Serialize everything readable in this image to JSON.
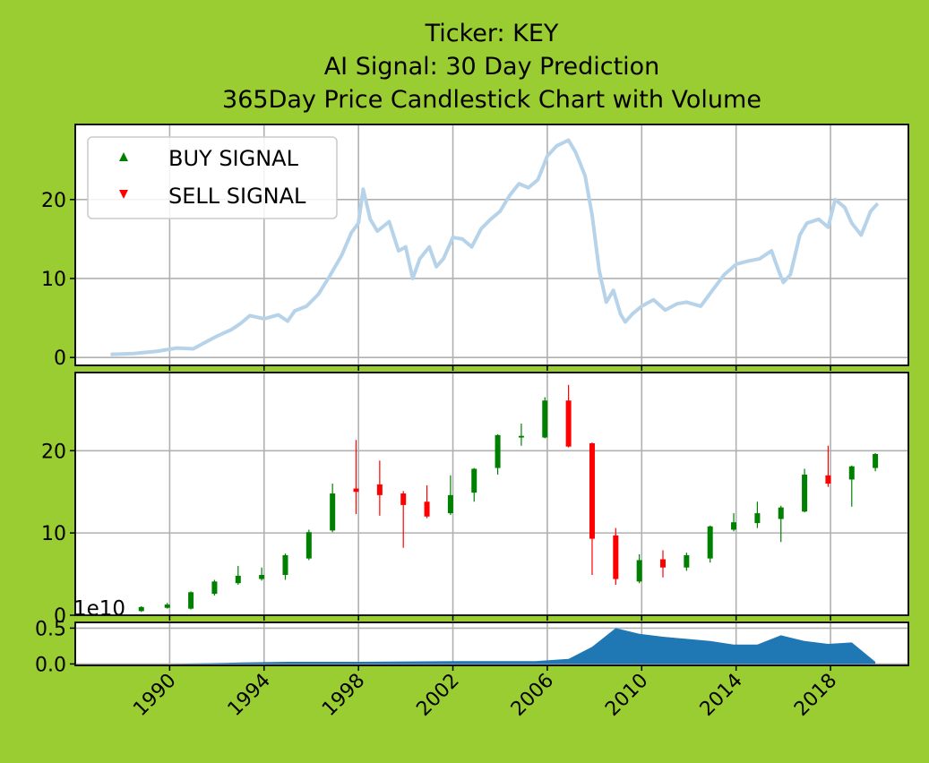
{
  "title": {
    "line1": "Ticker: KEY",
    "line2": "AI Signal: 30 Day Prediction",
    "line3": "365Day Price Candlestick Chart with Volume"
  },
  "legend": {
    "buy": "BUY SIGNAL",
    "sell": "SELL SIGNAL",
    "buy_color": "#008000",
    "sell_color": "#ff0000",
    "location": "upper-left"
  },
  "colors": {
    "background": "#9acd32",
    "price_line": "#b7d3e9",
    "up_candle": "#008000",
    "down_candle": "#ff0000",
    "volume_fill": "#1f77b4"
  },
  "volume_offset_label": "1e10",
  "chart_data": [
    {
      "type": "line",
      "name": "daily-close",
      "grid": true,
      "xlim": [
        1986.0,
        2021.3
      ],
      "ylim": [
        -1,
        29.5
      ],
      "yticks": [
        0,
        10,
        20
      ],
      "x": [
        1987.5,
        1988.5,
        1989.5,
        1990.3,
        1991.0,
        1991.5,
        1992.0,
        1992.6,
        1993.0,
        1993.4,
        1994.0,
        1994.6,
        1995.0,
        1995.3,
        1995.8,
        1996.3,
        1996.8,
        1997.3,
        1997.7,
        1998.0,
        1998.2,
        1998.5,
        1998.8,
        1999.3,
        1999.7,
        2000.0,
        2000.3,
        2000.6,
        2001.0,
        2001.3,
        2001.6,
        2002.0,
        2002.4,
        2002.8,
        2003.2,
        2003.6,
        2004.0,
        2004.4,
        2004.8,
        2005.2,
        2005.6,
        2006.0,
        2006.4,
        2006.9,
        2007.2,
        2007.6,
        2007.9,
        2008.2,
        2008.5,
        2008.8,
        2009.1,
        2009.3,
        2009.6,
        2010.0,
        2010.5,
        2011.0,
        2011.5,
        2011.9,
        2012.5,
        2013.0,
        2013.5,
        2014.0,
        2014.5,
        2015.0,
        2015.5,
        2015.8,
        2016.0,
        2016.3,
        2016.7,
        2017.0,
        2017.5,
        2017.9,
        2018.2,
        2018.6,
        2018.9,
        2019.3,
        2019.7,
        2020.0
      ],
      "y": [
        0.4,
        0.5,
        0.8,
        1.2,
        1.1,
        1.9,
        2.7,
        3.5,
        4.3,
        5.3,
        4.9,
        5.4,
        4.6,
        5.9,
        6.5,
        8.0,
        10.4,
        13.0,
        15.8,
        17.0,
        21.3,
        17.5,
        16.0,
        17.2,
        13.5,
        14.0,
        10.0,
        12.5,
        14.0,
        11.5,
        12.5,
        15.2,
        15.0,
        14.0,
        16.3,
        17.5,
        18.5,
        20.5,
        22.0,
        21.5,
        22.5,
        25.5,
        26.8,
        27.5,
        26.0,
        23.0,
        18.0,
        11.0,
        7.0,
        8.5,
        5.5,
        4.5,
        5.5,
        6.5,
        7.3,
        6.0,
        6.8,
        7.0,
        6.5,
        8.5,
        10.5,
        11.8,
        12.2,
        12.5,
        13.5,
        11.0,
        9.5,
        10.5,
        15.5,
        17.0,
        17.5,
        16.5,
        20.0,
        19.0,
        17.0,
        15.5,
        18.5,
        19.5
      ]
    },
    {
      "type": "candlestick",
      "name": "yearly",
      "grid": true,
      "xlim": [
        1986.0,
        2021.3
      ],
      "ylim": [
        0,
        29.5
      ],
      "yticks": [
        0,
        10,
        20
      ],
      "candles": [
        {
          "x": 1988.8,
          "open": 0.5,
          "close": 1.0,
          "high": 1.1,
          "low": 0.4
        },
        {
          "x": 1989.9,
          "open": 0.9,
          "close": 1.3,
          "high": 1.5,
          "low": 0.8
        },
        {
          "x": 1990.9,
          "open": 0.8,
          "close": 2.8,
          "high": 2.9,
          "low": 0.7
        },
        {
          "x": 1991.9,
          "open": 2.6,
          "close": 4.1,
          "high": 4.3,
          "low": 2.4
        },
        {
          "x": 1992.9,
          "open": 3.9,
          "close": 4.8,
          "high": 6.0,
          "low": 3.7
        },
        {
          "x": 1993.9,
          "open": 4.4,
          "close": 4.9,
          "high": 5.8,
          "low": 4.2
        },
        {
          "x": 1994.9,
          "open": 4.9,
          "close": 7.3,
          "high": 7.5,
          "low": 4.3
        },
        {
          "x": 1995.9,
          "open": 6.9,
          "close": 10.1,
          "high": 10.4,
          "low": 6.7
        },
        {
          "x": 1996.9,
          "open": 10.3,
          "close": 14.8,
          "high": 16.0,
          "low": 10.1
        },
        {
          "x": 1997.9,
          "open": 15.4,
          "close": 15.0,
          "high": 21.3,
          "low": 12.3
        },
        {
          "x": 1998.9,
          "open": 15.9,
          "close": 14.6,
          "high": 18.8,
          "low": 12.1
        },
        {
          "x": 1999.9,
          "open": 14.8,
          "close": 13.4,
          "high": 15.1,
          "low": 8.2
        },
        {
          "x": 2000.9,
          "open": 13.8,
          "close": 12.0,
          "high": 15.8,
          "low": 11.8
        },
        {
          "x": 2001.9,
          "open": 12.4,
          "close": 14.6,
          "high": 17.0,
          "low": 12.2
        },
        {
          "x": 2002.9,
          "open": 14.9,
          "close": 17.8,
          "high": 17.9,
          "low": 13.8
        },
        {
          "x": 2003.9,
          "open": 17.9,
          "close": 21.9,
          "high": 22.0,
          "low": 17.1
        },
        {
          "x": 2004.9,
          "open": 21.6,
          "close": 21.8,
          "high": 23.3,
          "low": 20.6
        },
        {
          "x": 2005.9,
          "open": 21.6,
          "close": 26.1,
          "high": 26.5,
          "low": 21.5
        },
        {
          "x": 2006.9,
          "open": 26.1,
          "close": 20.5,
          "high": 28.0,
          "low": 20.4
        },
        {
          "x": 2007.9,
          "open": 20.9,
          "close": 9.3,
          "high": 21.0,
          "low": 4.9
        },
        {
          "x": 2008.9,
          "open": 9.7,
          "close": 4.4,
          "high": 10.6,
          "low": 3.7
        },
        {
          "x": 2009.9,
          "open": 4.1,
          "close": 6.7,
          "high": 7.4,
          "low": 3.9
        },
        {
          "x": 2010.9,
          "open": 6.8,
          "close": 5.8,
          "high": 7.9,
          "low": 4.6
        },
        {
          "x": 2011.9,
          "open": 5.8,
          "close": 7.3,
          "high": 7.6,
          "low": 5.4
        },
        {
          "x": 2012.9,
          "open": 6.9,
          "close": 10.8,
          "high": 10.9,
          "low": 6.4
        },
        {
          "x": 2013.9,
          "open": 10.4,
          "close": 11.3,
          "high": 12.4,
          "low": 10.2
        },
        {
          "x": 2014.9,
          "open": 11.2,
          "close": 12.4,
          "high": 13.8,
          "low": 10.6
        },
        {
          "x": 2015.9,
          "open": 11.7,
          "close": 13.1,
          "high": 13.3,
          "low": 8.9
        },
        {
          "x": 2016.9,
          "open": 12.6,
          "close": 17.1,
          "high": 17.8,
          "low": 12.5
        },
        {
          "x": 2017.9,
          "open": 17.0,
          "close": 16.0,
          "high": 20.6,
          "low": 15.6
        },
        {
          "x": 2018.9,
          "open": 16.5,
          "close": 18.1,
          "high": 18.2,
          "low": 13.2
        },
        {
          "x": 2019.9,
          "open": 17.9,
          "close": 19.6,
          "high": 19.7,
          "low": 17.5
        }
      ]
    },
    {
      "type": "area",
      "name": "volume",
      "grid": true,
      "xlim": [
        1986.0,
        2021.3
      ],
      "ylim": [
        -0.02,
        0.58
      ],
      "yticks": [
        0.0,
        0.5
      ],
      "ytick_labels": [
        "0.0",
        "0.5"
      ],
      "xticks": [
        1990,
        1994,
        1998,
        2002,
        2006,
        2010,
        2014,
        2018
      ],
      "xtick_labels": [
        "1990",
        "1994",
        "1998",
        "2002",
        "2006",
        "2010",
        "2014",
        "2018"
      ],
      "x": [
        1987.0,
        1990.0,
        1993.0,
        1995.0,
        1998.0,
        2002.0,
        2005.5,
        2006.9,
        2007.9,
        2008.9,
        2009.9,
        2010.9,
        2011.9,
        2012.9,
        2013.9,
        2014.9,
        2015.9,
        2016.9,
        2017.9,
        2018.9,
        2019.9
      ],
      "y": [
        0.0,
        0.0,
        0.02,
        0.03,
        0.03,
        0.04,
        0.04,
        0.07,
        0.24,
        0.5,
        0.42,
        0.38,
        0.35,
        0.32,
        0.27,
        0.27,
        0.4,
        0.32,
        0.28,
        0.3,
        0.03
      ]
    }
  ]
}
